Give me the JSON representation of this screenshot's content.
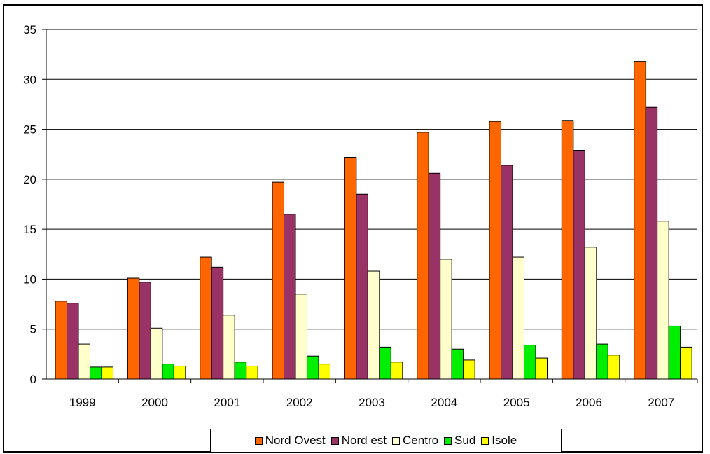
{
  "chart_data": {
    "type": "bar",
    "title": "",
    "xlabel": "",
    "ylabel": "",
    "categories": [
      "1999",
      "2000",
      "2001",
      "2002",
      "2003",
      "2004",
      "2005",
      "2006",
      "2007"
    ],
    "ylim": [
      0,
      35
    ],
    "yticks": [
      "0",
      "5",
      "10",
      "15",
      "20",
      "25",
      "30",
      "35"
    ],
    "grid": true,
    "legend_position": "bottom",
    "series": [
      {
        "name": "Nord Ovest",
        "color": "#ff6600",
        "values": [
          7.8,
          10.1,
          12.2,
          19.7,
          22.2,
          24.7,
          25.8,
          25.9,
          31.8
        ]
      },
      {
        "name": "Nord est",
        "color": "#993366",
        "values": [
          7.6,
          9.7,
          11.2,
          16.5,
          18.5,
          20.6,
          21.4,
          22.9,
          27.2
        ]
      },
      {
        "name": "Centro",
        "color": "#ffffcc",
        "values": [
          3.5,
          5.1,
          6.4,
          8.5,
          10.8,
          12.0,
          12.2,
          13.2,
          15.8
        ]
      },
      {
        "name": "Sud",
        "color": "#00ee00",
        "values": [
          1.2,
          1.5,
          1.7,
          2.3,
          3.2,
          3.0,
          3.4,
          3.5,
          5.3
        ]
      },
      {
        "name": "Isole",
        "color": "#ffff00",
        "values": [
          1.2,
          1.3,
          1.3,
          1.5,
          1.7,
          1.9,
          2.1,
          2.4,
          3.2
        ]
      }
    ]
  }
}
